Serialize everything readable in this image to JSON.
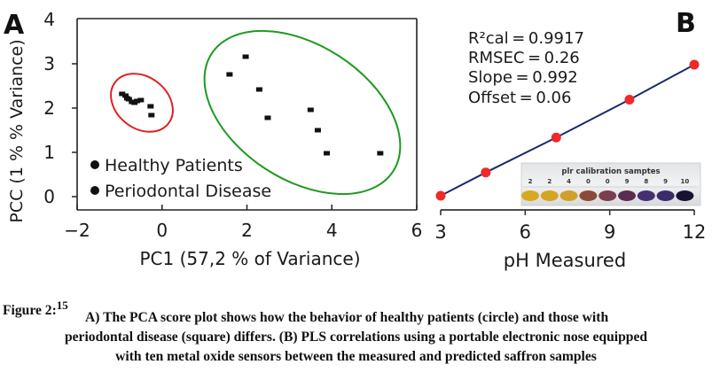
{
  "chart_data": [
    {
      "type": "scatter",
      "panel_label": "A",
      "xlabel": "PC1 (57,2 % of Variance)",
      "ylabel": "PCC (1 % % Variance)",
      "xlim": [
        -2,
        6
      ],
      "ylim": [
        0,
        4
      ],
      "x_ticks": [
        "−2",
        "0",
        "2",
        "4",
        "6"
      ],
      "x_tick_values": [
        -2,
        0,
        2,
        4,
        6
      ],
      "y_ticks": [
        "0",
        "1",
        "2",
        "3",
        "4"
      ],
      "y_tick_values": [
        0,
        1,
        2,
        3,
        4
      ],
      "legend": {
        "placement": "bottom-left",
        "entries": [
          "Healthy Patients",
          "Periodontal Disease"
        ]
      },
      "series": [
        {
          "name": "Healthy Patients",
          "ellipse_color": "#e02020",
          "x": [
            -0.94,
            -0.86,
            -0.82,
            -0.78,
            -0.71,
            -0.65,
            -0.59,
            -0.5,
            -0.27,
            -0.25
          ],
          "y": [
            2.32,
            2.28,
            2.22,
            2.2,
            2.14,
            2.12,
            2.16,
            2.18,
            2.04,
            1.84
          ]
        },
        {
          "name": "Periodontal Disease",
          "ellipse_color": "#1e9a1e",
          "x": [
            1.97,
            1.59,
            2.29,
            2.49,
            3.5,
            3.67,
            3.88,
            5.14
          ],
          "y": [
            3.16,
            2.76,
            2.42,
            1.78,
            1.96,
            1.5,
            0.98,
            0.98
          ]
        }
      ]
    },
    {
      "type": "line",
      "panel_label": "B",
      "xlabel": "pH Measured",
      "xlim": [
        3,
        12
      ],
      "ylim": [
        3,
        12
      ],
      "x_ticks": [
        "3",
        "6",
        "9",
        "12"
      ],
      "x_tick_values": [
        3,
        6,
        9,
        12
      ],
      "line_color": "#1a2a6e",
      "marker_color": "#f02828",
      "x": [
        3,
        4.6,
        7.1,
        9.7,
        12
      ],
      "y": [
        3,
        4.6,
        7.0,
        9.6,
        12
      ],
      "annotations": [
        "R²cal = 0.9917",
        "RMSEC = 0.26",
        "Slope = 0.992",
        "Offset = 0.06"
      ],
      "inset": {
        "title": "plr calibration samptes",
        "labels": [
          "2",
          "2",
          "4",
          "0",
          "0",
          "9",
          "8",
          "9",
          "10"
        ],
        "colors": [
          "#d9a820",
          "#d6a423",
          "#d0a02a",
          "#8a4a3a",
          "#7a3e4e",
          "#5a2c50",
          "#463070",
          "#3a2c6a",
          "#161230"
        ]
      }
    }
  ],
  "caption": {
    "lead": "Figure 2:",
    "ref": "15",
    "line1": "A) The PCA score plot shows how the behavior of healthy patients (circle) and those with",
    "line2": "periodontal disease (square) differs. (B) PLS correlations using a portable electronic nose equipped",
    "line3": "with ten metal oxide sensors between the measured and predicted saffron samples"
  }
}
